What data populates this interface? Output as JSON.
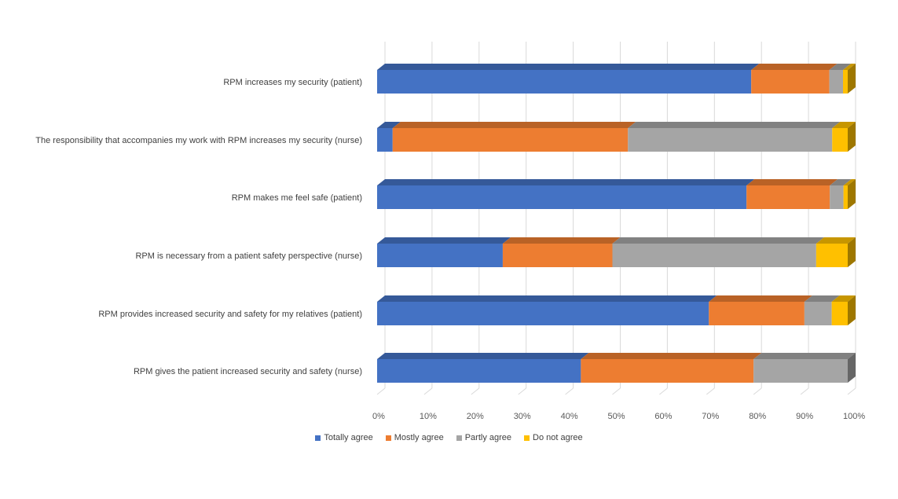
{
  "chart_data": {
    "type": "bar",
    "orientation": "horizontal",
    "stacked": "100%",
    "style": "3d",
    "categories": [
      "RPM increases my security (patient)",
      "The responsibility that accompanies my work with RPM increases my security (nurse)",
      "RPM makes me feel safe (patient)",
      "RPM is necessary from a patient safety perspective (nurse)",
      "RPM provides increased security and safety for my relatives (patient)",
      "RPM gives the patient increased security and safety (nurse)"
    ],
    "series": [
      {
        "name": "Totally agree",
        "color": "#4472C4",
        "values": [
          79.5,
          3.3,
          78.5,
          26.7,
          70.5,
          43.3
        ]
      },
      {
        "name": "Mostly agree",
        "color": "#ED7D31",
        "values": [
          16.6,
          50.0,
          17.7,
          23.3,
          20.3,
          36.7
        ]
      },
      {
        "name": "Partly agree",
        "color": "#A5A5A5",
        "values": [
          2.9,
          43.4,
          2.9,
          43.3,
          5.8,
          20.0
        ]
      },
      {
        "name": "Do not agree",
        "color": "#FFC000",
        "values": [
          1.0,
          3.3,
          0.9,
          6.7,
          3.4,
          0.0
        ]
      }
    ],
    "xlim": [
      0,
      100
    ],
    "xticks": [
      "0%",
      "10%",
      "20%",
      "30%",
      "40%",
      "50%",
      "60%",
      "70%",
      "80%",
      "90%",
      "100%"
    ],
    "grid": true,
    "legend_position": "bottom"
  }
}
